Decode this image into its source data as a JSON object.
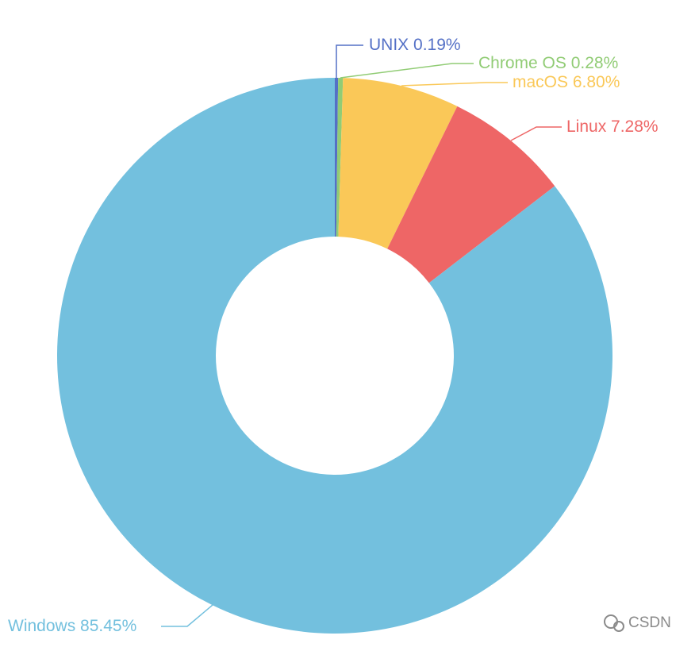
{
  "chart_data": {
    "type": "pie",
    "categories": [
      "UNIX",
      "Chrome OS",
      "macOS",
      "Linux",
      "Windows"
    ],
    "values": [
      0.19,
      0.28,
      6.8,
      7.28,
      85.45
    ],
    "value_labels": [
      "0.19%",
      "0.28%",
      "6.80%",
      "7.28%",
      "85.45%"
    ],
    "colors": [
      "#5470c6",
      "#91cc75",
      "#fac858",
      "#ee6666",
      "#73c0de"
    ],
    "watermark": "CSDN"
  }
}
